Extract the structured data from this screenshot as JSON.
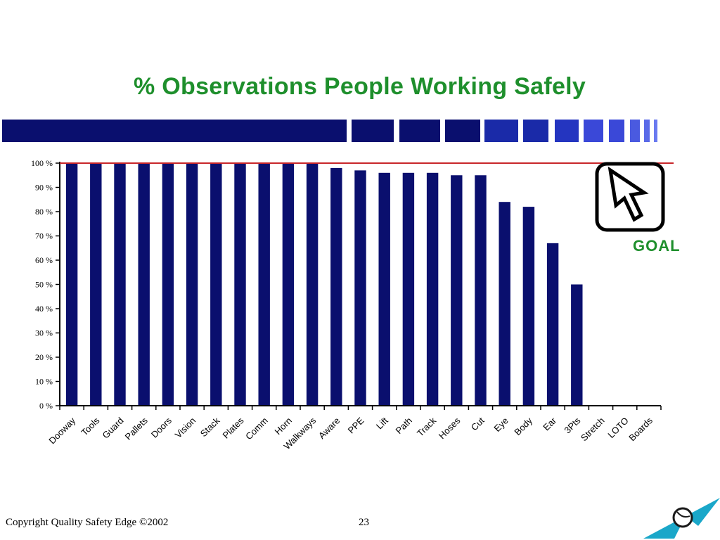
{
  "title": "% Observations People Working Safely",
  "goal_label": "GOAL",
  "footer": {
    "copyright": "Copyright Quality Safety Edge ©2002",
    "page_number": "23"
  },
  "icons": {
    "goal": "cursor-arrow-icon",
    "logo": "corner-logo-icon"
  },
  "colors": {
    "title": "#1e8f2c",
    "bars": "#0a0f6e",
    "goal_line": "#c8262a",
    "deco_dark": "#0a0f6e",
    "deco_light": "#3a48d8"
  },
  "chart_data": {
    "type": "bar",
    "title": "% Observations People Working Safely",
    "xlabel": "",
    "ylabel": "",
    "ylim": [
      0,
      100
    ],
    "yticks": [
      "0 %",
      "10 %",
      "20 %",
      "30 %",
      "40 %",
      "50 %",
      "60 %",
      "70 %",
      "80 %",
      "90 %",
      "100 %"
    ],
    "categories": [
      "Dooway",
      "Tools",
      "Guard",
      "Pallets",
      "Doors",
      "Vision",
      "Stack",
      "Plates",
      "Comm",
      "Horn",
      "Walkways",
      "Aware",
      "PPE",
      "Lift",
      "Path",
      "Track",
      "Hoses",
      "Cut",
      "Eye",
      "Body",
      "Ear",
      "3Pts",
      "Stretch",
      "LOTO",
      "Boards"
    ],
    "values": [
      100,
      100,
      100,
      100,
      100,
      100,
      100,
      100,
      100,
      100,
      100,
      98,
      97,
      96,
      96,
      96,
      95,
      95,
      84,
      82,
      67,
      50,
      0,
      0,
      0
    ],
    "goal": 100,
    "grid": false,
    "legend": "none"
  }
}
